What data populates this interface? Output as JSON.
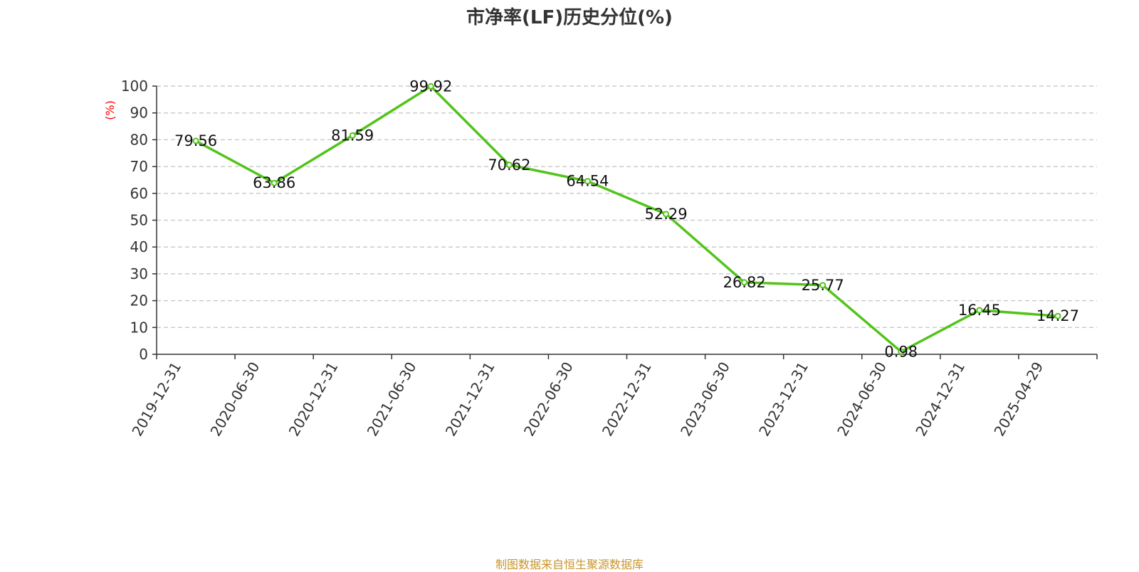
{
  "chart_data": {
    "type": "line",
    "title": "市净率(LF)历史分位(%)",
    "xlabel": "",
    "ylabel": "(%)",
    "categories": [
      "2019-12-31",
      "2020-06-30",
      "2020-12-31",
      "2021-06-30",
      "2021-12-31",
      "2022-06-30",
      "2022-12-31",
      "2023-06-30",
      "2023-12-31",
      "2024-06-30",
      "2024-12-31",
      "2025-04-29"
    ],
    "series": [
      {
        "values": [
          79.56,
          63.86,
          81.59,
          99.92,
          70.62,
          64.54,
          52.29,
          26.82,
          25.77,
          0.98,
          16.45,
          14.27
        ]
      }
    ],
    "data_labels": [
      "79.56",
      "63.86",
      "81.59",
      "99.92",
      "70.62",
      "64.54",
      "52.29",
      "26.82",
      "25.77",
      "0.98",
      "16.45",
      "14.27"
    ],
    "ylim": [
      0,
      100
    ],
    "yticks": [
      "0",
      "10",
      "20",
      "30",
      "40",
      "50",
      "60",
      "70",
      "80",
      "90",
      "100"
    ],
    "grid": true,
    "legend": "none"
  },
  "source": "制图数据来自恒生聚源数据库",
  "colors": {
    "line": "#52c41a",
    "axis": "#333333",
    "grid": "#cccccc",
    "unit_label": "#ff0000",
    "source_text": "#c8952c"
  }
}
